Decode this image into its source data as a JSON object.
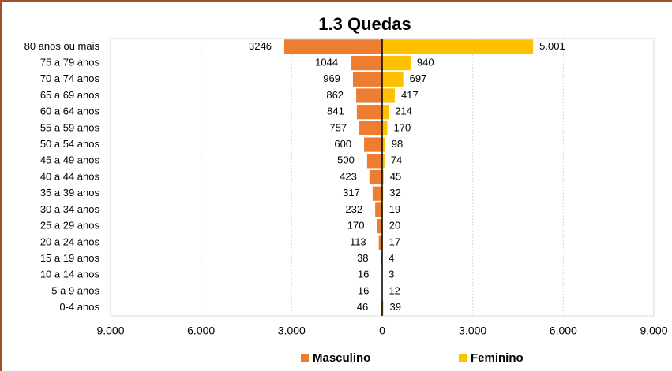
{
  "chart_data": {
    "type": "bar",
    "orientation": "horizontal",
    "title": "1.3 Quedas",
    "categories": [
      "80 anos ou mais",
      "75 a 79 anos",
      "70 a 74 anos",
      "65 a 69 anos",
      "60 a 64 anos",
      "55 a 59 anos",
      "50 a 54 anos",
      "45 a 49 anos",
      "40 a 44 anos",
      "35 a 39 anos",
      "30 a 34 anos",
      "25 a 29 anos",
      "20 a 24 anos",
      "15 a 19 anos",
      "10 a 14 anos",
      "5 a 9 anos",
      "0-4 anos"
    ],
    "series": [
      {
        "name": "Masculino",
        "color": "#ed7d31",
        "values": [
          -3246,
          -1044,
          -969,
          -862,
          -841,
          -757,
          -600,
          -500,
          -423,
          -317,
          -232,
          -170,
          -113,
          -38,
          -16,
          -16,
          -46
        ],
        "value_labels": [
          "3246",
          "1044",
          "969",
          "862",
          "841",
          "757",
          "600",
          "500",
          "423",
          "317",
          "232",
          "170",
          "113",
          "38",
          "16",
          "16",
          "46"
        ]
      },
      {
        "name": "Feminino",
        "color": "#ffc000",
        "values": [
          5001,
          940,
          697,
          417,
          214,
          170,
          98,
          74,
          45,
          32,
          19,
          20,
          17,
          4,
          3,
          12,
          39
        ],
        "value_labels": [
          "5.001",
          "940",
          "697",
          "417",
          "214",
          "170",
          "98",
          "74",
          "45",
          "32",
          "19",
          "20",
          "17",
          "4",
          "3",
          "12",
          "39"
        ]
      }
    ],
    "xlim": [
      -9000,
      9000
    ],
    "xticks": [
      {
        "value": -9000,
        "label": "9.000"
      },
      {
        "value": -6000,
        "label": "6.000"
      },
      {
        "value": -3000,
        "label": "3.000"
      },
      0,
      {
        "value": 3000,
        "label": "3.000"
      },
      {
        "value": 6000,
        "label": "6.000"
      },
      {
        "value": 9000,
        "label": "9.000"
      }
    ],
    "grid": true,
    "legend": "bottom"
  }
}
